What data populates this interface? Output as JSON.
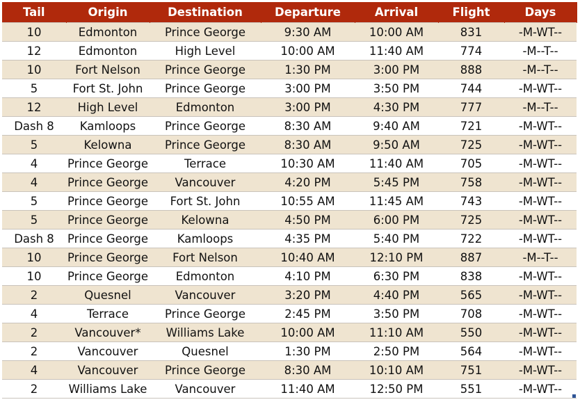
{
  "table": {
    "header": [
      "Tail",
      "Origin",
      "Destination",
      "Departure",
      "Arrival",
      "Flight",
      "Days"
    ],
    "rows": [
      [
        "10",
        "Edmonton",
        "Prince George",
        "9:30 AM",
        "10:00 AM",
        "831",
        "-M-WT--"
      ],
      [
        "12",
        "Edmonton",
        "High Level",
        "10:00 AM",
        "11:40 AM",
        "774",
        "-M--T--"
      ],
      [
        "10",
        "Fort Nelson",
        "Prince George",
        "1:30 PM",
        "3:00 PM",
        "888",
        "-M--T--"
      ],
      [
        "5",
        "Fort St. John",
        "Prince George",
        "3:00 PM",
        "3:50 PM",
        "744",
        "-M-WT--"
      ],
      [
        "12",
        "High Level",
        "Edmonton",
        "3:00 PM",
        "4:30 PM",
        "777",
        "-M--T--"
      ],
      [
        "Dash 8",
        "Kamloops",
        "Prince George",
        "8:30 AM",
        "9:40 AM",
        "721",
        "-M-WT--"
      ],
      [
        "5",
        "Kelowna",
        "Prince George",
        "8:30 AM",
        "9:50 AM",
        "725",
        "-M-WT--"
      ],
      [
        "4",
        "Prince George",
        "Terrace",
        "10:30 AM",
        "11:40 AM",
        "705",
        "-M-WT--"
      ],
      [
        "4",
        "Prince George",
        "Vancouver",
        "4:20 PM",
        "5:45 PM",
        "758",
        "-M-WT--"
      ],
      [
        "5",
        "Prince George",
        "Fort St. John",
        "10:55 AM",
        "11:45 AM",
        "743",
        "-M-WT--"
      ],
      [
        "5",
        "Prince George",
        "Kelowna",
        "4:50 PM",
        "6:00 PM",
        "725",
        "-M-WT--"
      ],
      [
        "Dash 8",
        "Prince George",
        "Kamloops",
        "4:35 PM",
        "5:40 PM",
        "722",
        "-M-WT--"
      ],
      [
        "10",
        "Prince George",
        "Fort Nelson",
        "10:40 AM",
        "12:10 PM",
        "887",
        "-M--T--"
      ],
      [
        "10",
        "Prince George",
        "Edmonton",
        "4:10 PM",
        "6:30 PM",
        "838",
        "-M-WT--"
      ],
      [
        "2",
        "Quesnel",
        "Vancouver",
        "3:20 PM",
        "4:40 PM",
        "565",
        "-M-WT--"
      ],
      [
        "4",
        "Terrace",
        "Prince George",
        "2:45 PM",
        "3:50 PM",
        "708",
        "-M-WT--"
      ],
      [
        "2",
        "Vancouver*",
        "Williams Lake",
        "10:00 AM",
        "11:10 AM",
        "550",
        "-M-WT--"
      ],
      [
        "2",
        "Vancouver",
        "Quesnel",
        "1:30 PM",
        "2:50 PM",
        "564",
        "-M-WT--"
      ],
      [
        "4",
        "Vancouver",
        "Prince George",
        "8:30 AM",
        "10:10 AM",
        "751",
        "-M-WT--"
      ],
      [
        "2",
        "Williams Lake",
        "Vancouver",
        "11:40 AM",
        "12:50 PM",
        "551",
        "-M-WT--"
      ]
    ]
  }
}
